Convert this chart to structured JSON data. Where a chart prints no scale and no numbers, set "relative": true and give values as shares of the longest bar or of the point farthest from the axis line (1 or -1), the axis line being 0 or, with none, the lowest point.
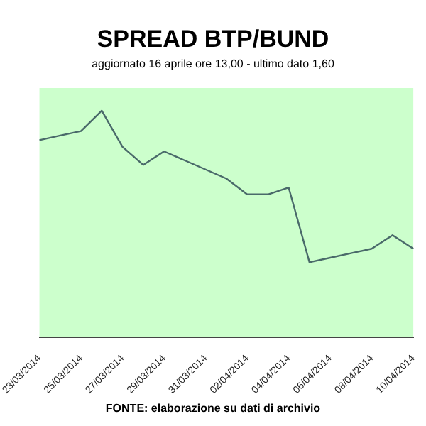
{
  "chart_data": {
    "type": "line",
    "title": "SPREAD BTP/BUND",
    "subtitle": "aggiornato 16 aprile ore 13,00 - ultimo dato 1,60",
    "annotations": [
      "FONTE: elaborazione su dati di archivio"
    ],
    "categories": [
      "23/03/2014",
      null,
      "25/03/2014",
      null,
      "27/03/2014",
      null,
      "29/03/2014",
      null,
      "31/03/2014",
      null,
      "02/04/2014",
      null,
      "04/04/2014",
      null,
      "06/04/2014",
      null,
      "08/04/2014",
      null,
      "10/04/2014"
    ],
    "relative": true,
    "series": [
      {
        "color": "#4a6a6a",
        "values": [
          0.87,
          0.89,
          0.91,
          1,
          0.84,
          0.76,
          0.82,
          0.78,
          0.74,
          0.7,
          0.63,
          0.63,
          0.66,
          0.33,
          0.35,
          0.37,
          0.39,
          0.45,
          0.39
        ]
      }
    ],
    "legend": false,
    "marker": "none",
    "line_style": "solid"
  }
}
